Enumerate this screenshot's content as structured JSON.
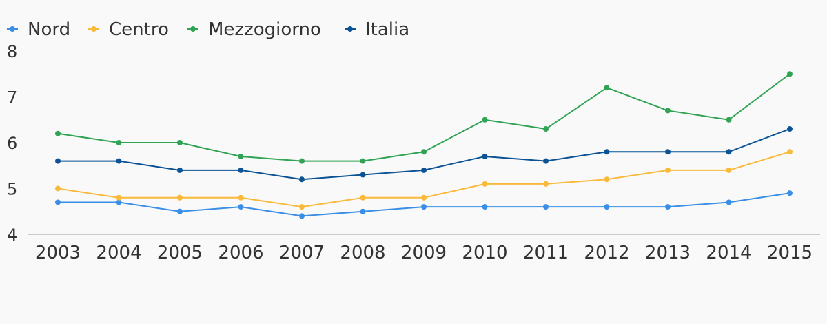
{
  "chart_data": {
    "type": "line",
    "categories": [
      "2003",
      "2004",
      "2005",
      "2006",
      "2007",
      "2008",
      "2009",
      "2010",
      "2011",
      "2012",
      "2013",
      "2014",
      "2015"
    ],
    "ylim": [
      4,
      8
    ],
    "yticks": [
      4,
      5,
      6,
      7,
      8
    ],
    "grid": false,
    "legend_position": "top-left",
    "series": [
      {
        "name": "Nord",
        "color": "#3a8ee6",
        "values": [
          4.7,
          4.7,
          4.5,
          4.6,
          4.4,
          4.5,
          4.6,
          4.6,
          4.6,
          4.6,
          4.6,
          4.7,
          4.9
        ]
      },
      {
        "name": "Centro",
        "color": "#f9b93b",
        "values": [
          5.0,
          4.8,
          4.8,
          4.8,
          4.6,
          4.8,
          4.8,
          5.1,
          5.1,
          5.2,
          5.4,
          5.4,
          5.8
        ]
      },
      {
        "name": "Mezzogiorno",
        "color": "#31a354",
        "values": [
          6.2,
          6.0,
          6.0,
          5.7,
          5.6,
          5.6,
          5.8,
          6.5,
          6.3,
          7.2,
          6.7,
          6.5,
          7.5
        ]
      },
      {
        "name": "Italia",
        "color": "#0b5394",
        "values": [
          5.6,
          5.6,
          5.4,
          5.4,
          5.2,
          5.3,
          5.4,
          5.7,
          5.6,
          5.8,
          5.8,
          5.8,
          6.3
        ]
      }
    ]
  }
}
